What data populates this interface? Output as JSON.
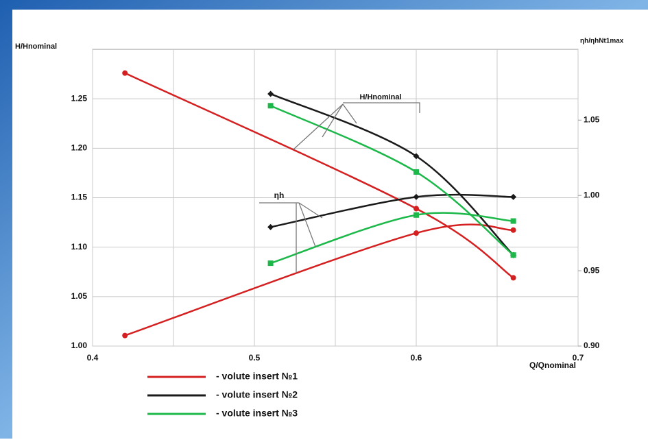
{
  "chart_data": {
    "type": "line",
    "y_label": "H/Hnominal",
    "y2_label": "ηh/ηhNt1max",
    "x_label": "Q/Qnominal",
    "annotations": [
      "H/Hnominal",
      "ηh"
    ],
    "xlim": [
      0.4,
      0.7
    ],
    "xticks": [
      0.4,
      0.5,
      0.6,
      0.7
    ],
    "xminorticks": [
      0.45,
      0.55,
      0.65
    ],
    "ylim": [
      1.0,
      1.3
    ],
    "yticks": [
      {
        "value": 1.0,
        "label": "1.00"
      },
      {
        "value": 1.05,
        "label": "1.05"
      },
      {
        "value": 1.1,
        "label": "1.10"
      },
      {
        "value": 1.15,
        "label": "1.15"
      },
      {
        "value": 1.2,
        "label": "1.20"
      },
      {
        "value": 1.25,
        "label": "1.25"
      }
    ],
    "y2lim": [
      0.9,
      1.097
    ],
    "y2ticks": [
      {
        "value": 0.9,
        "label": "0.90"
      },
      {
        "value": 0.95,
        "label": "0.95"
      },
      {
        "value": 1.0,
        "label": "1.00"
      },
      {
        "value": 1.05,
        "label": "1.05"
      }
    ],
    "grid": true,
    "series": [
      {
        "name": "- volute insert №1",
        "color": "#d42020",
        "marker": "circle",
        "x": [
          0.42,
          0.6,
          0.66
        ],
        "values": [
          1.276,
          1.139,
          1.069
        ],
        "y2_x": [
          0.42,
          0.6,
          0.66
        ],
        "y2_values": [
          0.907,
          0.975,
          0.977
        ]
      },
      {
        "name": "- volute insert №2",
        "color": "#1a1a1a",
        "marker": "diamond",
        "x": [
          0.51,
          0.6,
          0.66
        ],
        "values": [
          1.255,
          1.192,
          1.092
        ],
        "y2_x": [
          0.51,
          0.6,
          0.66
        ],
        "y2_values": [
          0.979,
          0.999,
          0.999
        ]
      },
      {
        "name": "- volute insert №3",
        "color": "#1db84a",
        "marker": "square",
        "x": [
          0.51,
          0.6,
          0.66
        ],
        "values": [
          1.243,
          1.176,
          1.092
        ],
        "y2_x": [
          0.51,
          0.6,
          0.66
        ],
        "y2_values": [
          0.955,
          0.987,
          0.983
        ]
      }
    ]
  }
}
